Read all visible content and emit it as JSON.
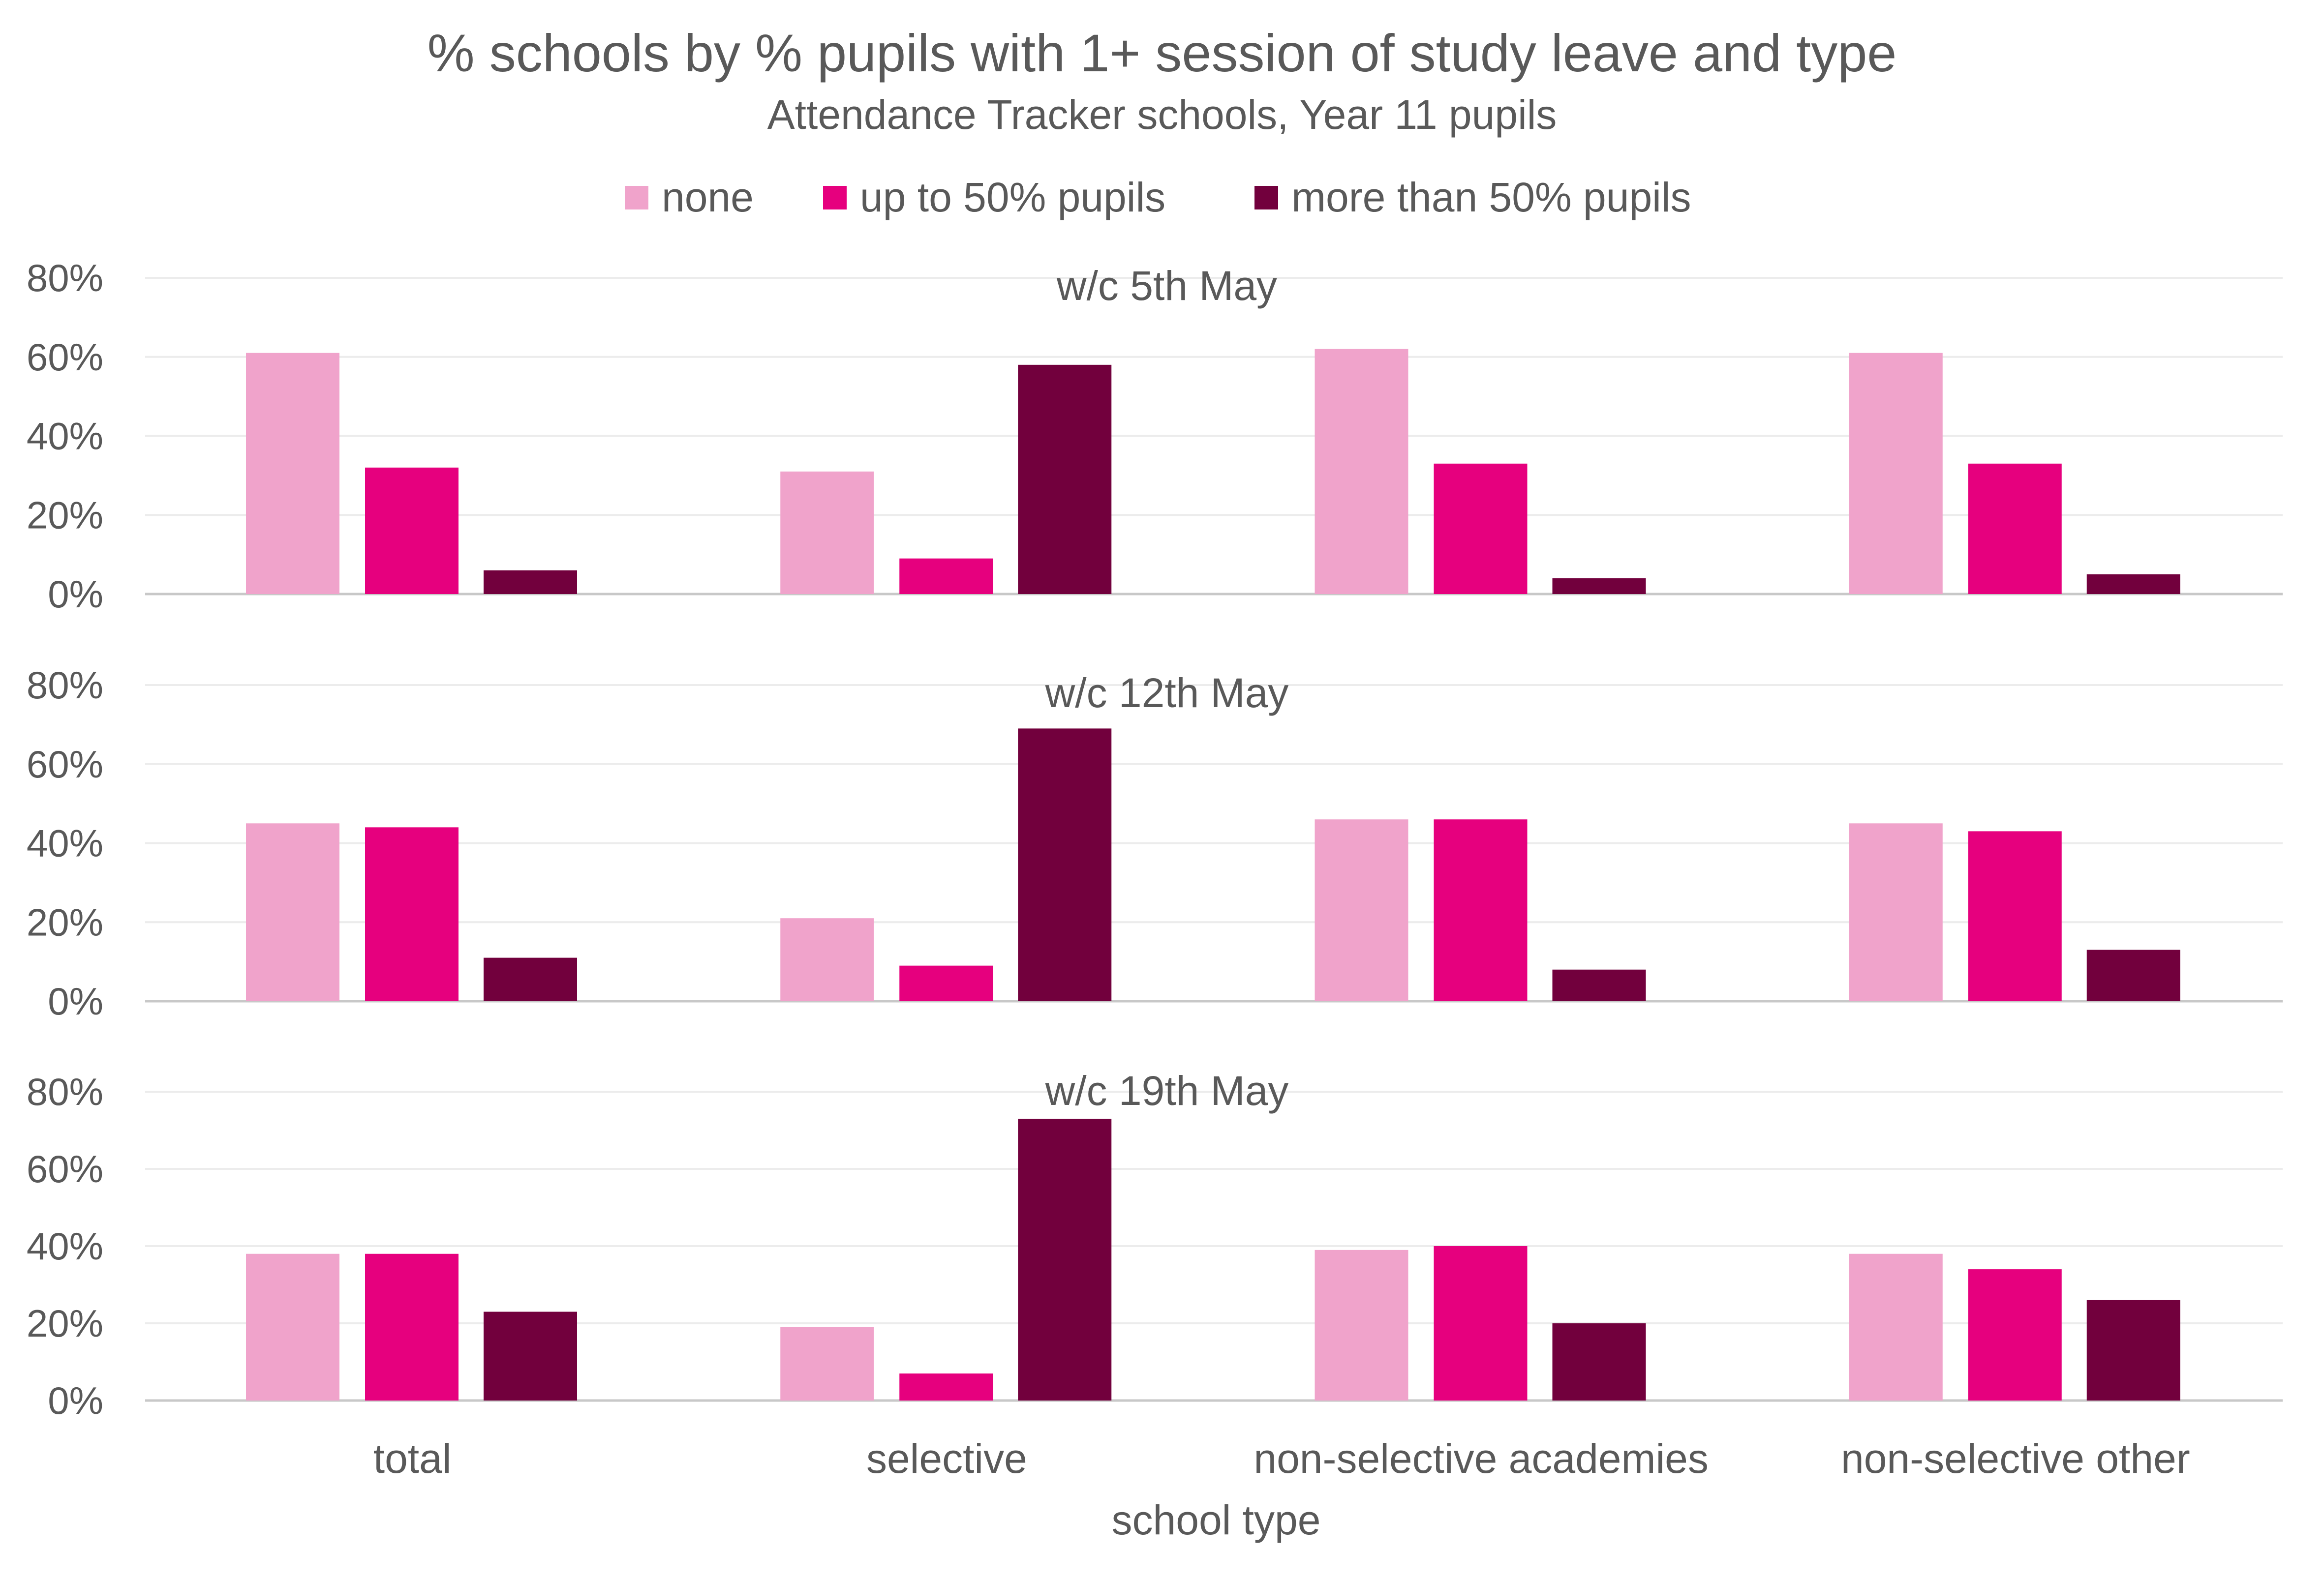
{
  "chart_data": {
    "type": "bar",
    "title": "% schools by % pupils with 1+ session of study leave and type",
    "subtitle": "Attendance Tracker schools, Year 11 pupils",
    "xlabel": "school type",
    "ylabel": "",
    "ylim": [
      0,
      80
    ],
    "yticks": [
      "0%",
      "20%",
      "40%",
      "60%",
      "80%"
    ],
    "grid": true,
    "legend_position": "top",
    "categories": [
      "total",
      "selective",
      "non-selective academies",
      "non-selective other"
    ],
    "series_meta": [
      {
        "name": "none",
        "color": "#f0a3cb"
      },
      {
        "name": "up to 50% pupils",
        "color": "#e6007e"
      },
      {
        "name": "more than 50% pupils",
        "color": "#72003d"
      }
    ],
    "panels": [
      {
        "title": "w/c 5th May",
        "series": [
          {
            "name": "none",
            "values": [
              61,
              31,
              62,
              61
            ]
          },
          {
            "name": "up to 50% pupils",
            "values": [
              32,
              9,
              33,
              33
            ]
          },
          {
            "name": "more than 50% pupils",
            "values": [
              6,
              58,
              4,
              5
            ]
          }
        ]
      },
      {
        "title": "w/c 12th May",
        "series": [
          {
            "name": "none",
            "values": [
              45,
              21,
              46,
              45
            ]
          },
          {
            "name": "up to 50% pupils",
            "values": [
              44,
              9,
              46,
              43
            ]
          },
          {
            "name": "more than 50% pupils",
            "values": [
              11,
              69,
              8,
              13
            ]
          }
        ]
      },
      {
        "title": "w/c 19th May",
        "series": [
          {
            "name": "none",
            "values": [
              38,
              19,
              39,
              38
            ]
          },
          {
            "name": "up to 50% pupils",
            "values": [
              38,
              7,
              40,
              34
            ]
          },
          {
            "name": "more than 50% pupils",
            "values": [
              23,
              73,
              20,
              26
            ]
          }
        ]
      }
    ]
  }
}
